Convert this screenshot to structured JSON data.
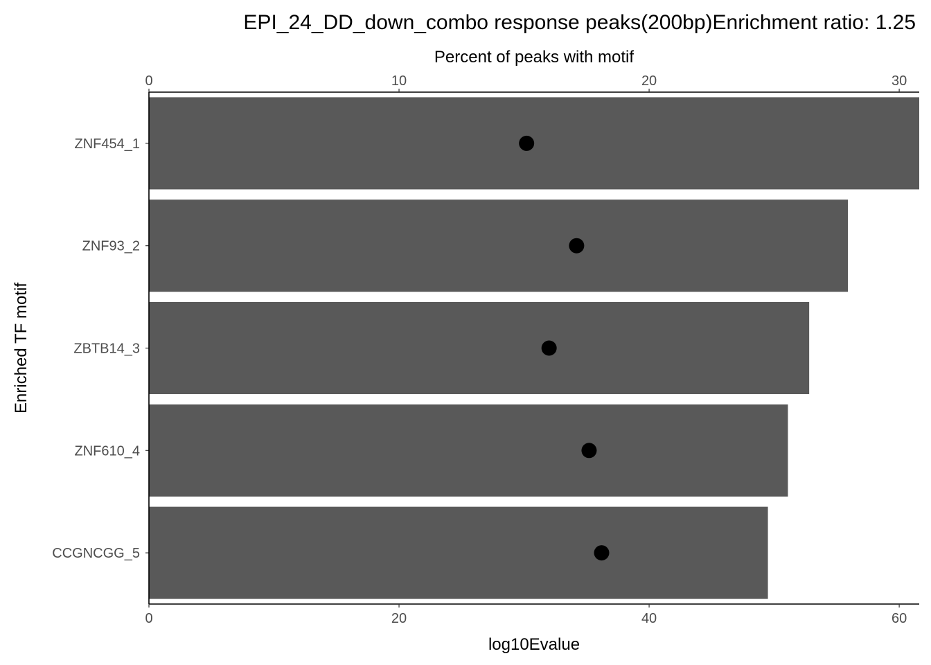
{
  "chart_data": {
    "type": "bar",
    "title": "EPI_24_DD_down_combo response peaks(200bp)Enrichment ratio: 1.25",
    "ylabel": "Enriched TF motif",
    "categories": [
      "ZNF454_1",
      "ZNF93_2",
      "ZBTB14_3",
      "ZNF610_4",
      "CCGNCGG_5"
    ],
    "bar_series": {
      "axis_label": "log10Evalue",
      "values": [
        61.6,
        55.9,
        52.8,
        51.1,
        49.5
      ],
      "xlim": [
        0,
        61.6
      ],
      "ticks": [
        0,
        20,
        40,
        60
      ],
      "color": "#595959"
    },
    "point_series": {
      "axis_label": "Percent of peaks with motif",
      "values": [
        15.1,
        17.1,
        16.0,
        17.6,
        18.1
      ],
      "xlim": [
        0,
        30.8
      ],
      "ticks": [
        0,
        10,
        20,
        30
      ],
      "color": "#000000"
    },
    "grid": false,
    "legend": "none"
  }
}
